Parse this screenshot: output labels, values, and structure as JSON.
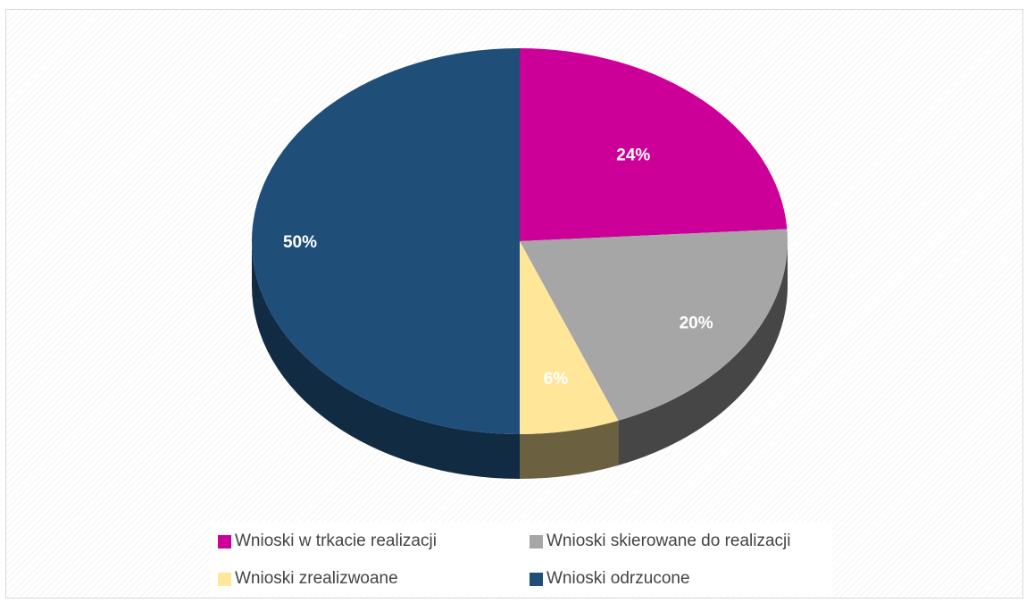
{
  "chart_data": {
    "type": "pie",
    "style": "3d",
    "categories": [
      "Wnioski w trkacie realizacji",
      "Wnioski skierowane do realizacji",
      "Wnioski zrealizwoane",
      "Wnioski odrzucone"
    ],
    "values": [
      24,
      20,
      6,
      50
    ],
    "labels": [
      "24%",
      "20%",
      "6%",
      "50%"
    ],
    "colors": [
      "#cc0099",
      "#a6a6a6",
      "#ffe699",
      "#1f4e79"
    ],
    "legend_position": "bottom"
  }
}
